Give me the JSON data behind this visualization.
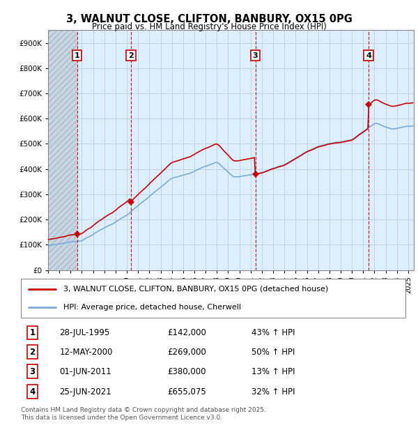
{
  "title": "3, WALNUT CLOSE, CLIFTON, BANBURY, OX15 0PG",
  "subtitle": "Price paid vs. HM Land Registry's House Price Index (HPI)",
  "xlim": [
    1993.0,
    2025.5
  ],
  "ylim": [
    0,
    950000
  ],
  "yticks": [
    0,
    100000,
    200000,
    300000,
    400000,
    500000,
    600000,
    700000,
    800000,
    900000
  ],
  "ytick_labels": [
    "£0",
    "£100K",
    "£200K",
    "£300K",
    "£400K",
    "£500K",
    "£600K",
    "£700K",
    "£800K",
    "£900K"
  ],
  "transactions": [
    {
      "num": 1,
      "date": "28-JUL-1995",
      "year": 1995.57,
      "price": 142000,
      "pct": "43%",
      "dir": "↑"
    },
    {
      "num": 2,
      "date": "12-MAY-2000",
      "year": 2000.36,
      "price": 269000,
      "pct": "50%",
      "dir": "↑"
    },
    {
      "num": 3,
      "date": "01-JUN-2011",
      "year": 2011.42,
      "price": 380000,
      "pct": "13%",
      "dir": "↑"
    },
    {
      "num": 4,
      "date": "25-JUN-2021",
      "year": 2021.48,
      "price": 655075,
      "pct": "32%",
      "dir": "↑"
    }
  ],
  "legend_line1": "3, WALNUT CLOSE, CLIFTON, BANBURY, OX15 0PG (detached house)",
  "legend_line2": "HPI: Average price, detached house, Cherwell",
  "footer1": "Contains HM Land Registry data © Crown copyright and database right 2025.",
  "footer2": "This data is licensed under the Open Government Licence v3.0.",
  "hpi_color": "#7aabdb",
  "price_color": "#cc0000",
  "chart_bg": "#ddeeff",
  "hatch_bg": "#c8d8e8",
  "grid_color": "#b8cfe0"
}
